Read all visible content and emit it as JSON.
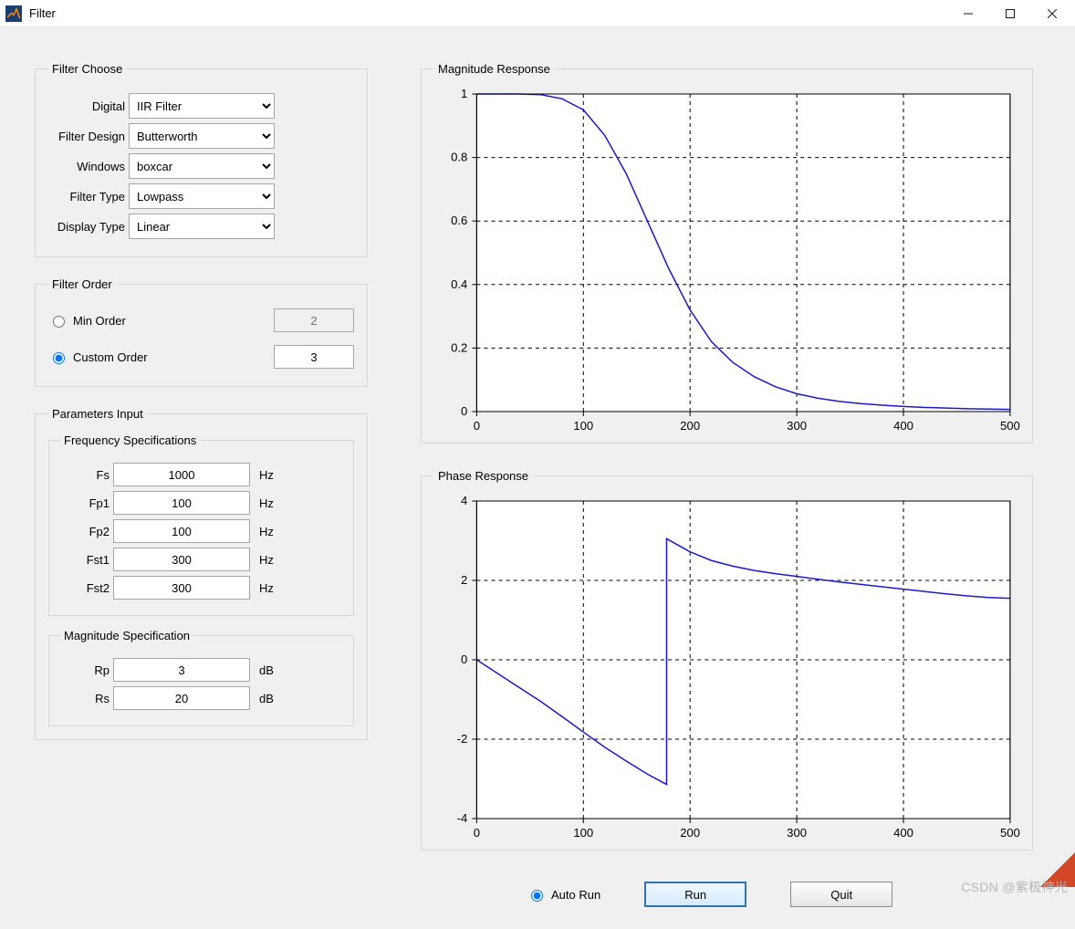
{
  "window": {
    "title": "Filter"
  },
  "filter_choose": {
    "legend": "Filter Choose",
    "digital_label": "Digital",
    "digital_value": "IIR Filter",
    "design_label": "Filter Design",
    "design_value": "Butterworth",
    "windows_label": "Windows",
    "windows_value": "boxcar",
    "type_label": "Filter Type",
    "type_value": "Lowpass",
    "display_label": "Display Type",
    "display_value": "Linear"
  },
  "filter_order": {
    "legend": "Filter Order",
    "min_label": "Min Order",
    "min_value": "2",
    "min_selected": false,
    "custom_label": "Custom Order",
    "custom_value": "3",
    "custom_selected": true
  },
  "params": {
    "legend": "Parameters Input",
    "freq": {
      "legend": "Frequency Specifications",
      "unit": "Hz",
      "rows": [
        {
          "label": "Fs",
          "value": "1000"
        },
        {
          "label": "Fp1",
          "value": "100"
        },
        {
          "label": "Fp2",
          "value": "100"
        },
        {
          "label": "Fst1",
          "value": "300"
        },
        {
          "label": "Fst2",
          "value": "300"
        }
      ]
    },
    "mag": {
      "legend": "Magnitude Specification",
      "unit": "dB",
      "rows": [
        {
          "label": "Rp",
          "value": "3"
        },
        {
          "label": "Rs",
          "value": "20"
        }
      ]
    }
  },
  "plots": {
    "magnitude": {
      "legend": "Magnitude Response",
      "type": "line",
      "xlim": [
        0,
        500
      ],
      "ylim": [
        0,
        1
      ],
      "xtick_step": 100,
      "ytick_step": 0.2,
      "xticks_labels": [
        "0",
        "100",
        "200",
        "300",
        "400",
        "500"
      ],
      "yticks_labels": [
        "0",
        "0.2",
        "0.4",
        "0.6",
        "0.8",
        "1"
      ],
      "series_color": "#1a1ac8",
      "background_color": "#ffffff",
      "grid_color": "#000000",
      "grid_dash": "4 4",
      "line_width": 1.5,
      "data": [
        [
          0,
          1.0
        ],
        [
          20,
          1.0
        ],
        [
          40,
          1.0
        ],
        [
          60,
          0.998
        ],
        [
          80,
          0.985
        ],
        [
          100,
          0.95
        ],
        [
          120,
          0.87
        ],
        [
          140,
          0.75
        ],
        [
          160,
          0.6
        ],
        [
          180,
          0.45
        ],
        [
          200,
          0.32
        ],
        [
          220,
          0.22
        ],
        [
          240,
          0.155
        ],
        [
          260,
          0.11
        ],
        [
          280,
          0.078
        ],
        [
          300,
          0.056
        ],
        [
          320,
          0.042
        ],
        [
          340,
          0.032
        ],
        [
          360,
          0.025
        ],
        [
          380,
          0.02
        ],
        [
          400,
          0.016
        ],
        [
          420,
          0.013
        ],
        [
          440,
          0.011
        ],
        [
          460,
          0.009
        ],
        [
          480,
          0.008
        ],
        [
          500,
          0.007
        ]
      ]
    },
    "phase": {
      "legend": "Phase  Response",
      "type": "line",
      "xlim": [
        0,
        500
      ],
      "ylim": [
        -4,
        4
      ],
      "xtick_step": 100,
      "ytick_step": 2,
      "xticks_labels": [
        "0",
        "100",
        "200",
        "300",
        "400",
        "500"
      ],
      "yticks_labels": [
        "-4",
        "-2",
        "0",
        "2",
        "4"
      ],
      "series_color": "#1a1ac8",
      "background_color": "#ffffff",
      "grid_color": "#000000",
      "grid_dash": "4 4",
      "line_width": 1.5,
      "data": [
        [
          0,
          0.0
        ],
        [
          20,
          -0.35
        ],
        [
          40,
          -0.7
        ],
        [
          60,
          -1.05
        ],
        [
          80,
          -1.43
        ],
        [
          100,
          -1.82
        ],
        [
          120,
          -2.2
        ],
        [
          140,
          -2.55
        ],
        [
          160,
          -2.88
        ],
        [
          178,
          -3.14
        ],
        [
          178,
          3.05
        ],
        [
          200,
          2.72
        ],
        [
          220,
          2.5
        ],
        [
          240,
          2.36
        ],
        [
          260,
          2.25
        ],
        [
          280,
          2.17
        ],
        [
          300,
          2.1
        ],
        [
          320,
          2.03
        ],
        [
          340,
          1.96
        ],
        [
          360,
          1.9
        ],
        [
          380,
          1.84
        ],
        [
          400,
          1.78
        ],
        [
          420,
          1.72
        ],
        [
          440,
          1.66
        ],
        [
          460,
          1.61
        ],
        [
          480,
          1.57
        ],
        [
          500,
          1.55
        ]
      ]
    }
  },
  "bottom": {
    "auto_run_label": "Auto Run",
    "auto_run_selected": true,
    "run_label": "Run",
    "quit_label": "Quit"
  },
  "watermark": "CSDN @紫极神光"
}
